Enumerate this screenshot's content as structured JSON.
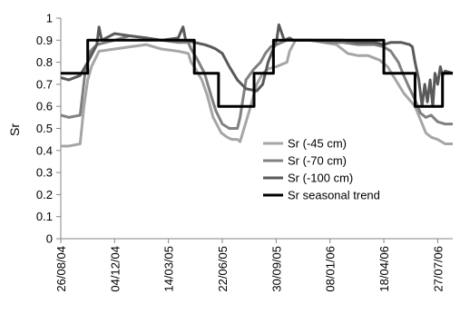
{
  "chart_data": {
    "type": "line",
    "title": "",
    "xlabel": "",
    "ylabel": "Sr",
    "ylim": [
      0,
      1
    ],
    "yticks": [
      "0",
      "0.1",
      "0.2",
      "0.3",
      "0.4",
      "0.5",
      "0.6",
      "0.7",
      "0.8",
      "0.9",
      "1"
    ],
    "xlim": [
      "2004-08-26",
      "2006-08-24"
    ],
    "xticks": [
      {
        "date": "2004-08-26",
        "label": "26/08/04"
      },
      {
        "date": "2004-12-04",
        "label": "04/12/04"
      },
      {
        "date": "2005-03-14",
        "label": "14/03/05"
      },
      {
        "date": "2005-06-22",
        "label": "22/06/05"
      },
      {
        "date": "2005-09-30",
        "label": "30/09/05"
      },
      {
        "date": "2006-01-08",
        "label": "08/01/06"
      },
      {
        "date": "2006-04-18",
        "label": "18/04/06"
      },
      {
        "date": "2006-07-27",
        "label": "27/07/06"
      }
    ],
    "grid": false,
    "legend_position": "center-right",
    "series": [
      {
        "name": "Sr (-45 cm)",
        "color": "#a6a6a6",
        "x": [
          "2004-08-26",
          "2004-09-10",
          "2004-10-01",
          "2004-10-08",
          "2004-10-15",
          "2004-10-22",
          "2004-11-05",
          "2004-12-04",
          "2005-01-01",
          "2005-02-01",
          "2005-03-01",
          "2005-04-01",
          "2005-04-20",
          "2005-04-25",
          "2005-05-01",
          "2005-05-15",
          "2005-05-25",
          "2005-06-05",
          "2005-06-20",
          "2005-07-01",
          "2005-07-10",
          "2005-07-20",
          "2005-07-25",
          "2005-08-10",
          "2005-08-25",
          "2005-09-05",
          "2005-09-15",
          "2005-09-30",
          "2005-10-20",
          "2005-10-25",
          "2005-11-05",
          "2005-12-01",
          "2006-01-20",
          "2006-02-10",
          "2006-03-01",
          "2006-03-20",
          "2006-04-10",
          "2006-04-25",
          "2006-05-10",
          "2006-05-25",
          "2006-06-15",
          "2006-06-25",
          "2006-07-05",
          "2006-07-15",
          "2006-07-27",
          "2006-08-10",
          "2006-08-24"
        ],
        "values": [
          0.42,
          0.42,
          0.43,
          0.6,
          0.72,
          0.78,
          0.85,
          0.86,
          0.87,
          0.88,
          0.86,
          0.85,
          0.84,
          0.8,
          0.78,
          0.72,
          0.65,
          0.55,
          0.48,
          0.46,
          0.45,
          0.45,
          0.44,
          0.57,
          0.7,
          0.75,
          0.77,
          0.78,
          0.8,
          0.85,
          0.9,
          0.9,
          0.88,
          0.84,
          0.83,
          0.83,
          0.81,
          0.78,
          0.72,
          0.66,
          0.6,
          0.54,
          0.48,
          0.46,
          0.45,
          0.43,
          0.43
        ]
      },
      {
        "name": "Sr (-70 cm)",
        "color": "#808080",
        "x": [
          "2004-08-26",
          "2004-09-10",
          "2004-10-01",
          "2004-10-10",
          "2004-10-20",
          "2004-11-01",
          "2004-12-04",
          "2005-01-01",
          "2005-02-01",
          "2005-03-01",
          "2005-04-01",
          "2005-04-20",
          "2005-04-25",
          "2005-05-05",
          "2005-05-20",
          "2005-06-01",
          "2005-06-10",
          "2005-06-22",
          "2005-07-05",
          "2005-07-20",
          "2005-07-25",
          "2005-08-05",
          "2005-08-20",
          "2005-09-01",
          "2005-09-10",
          "2005-09-20",
          "2005-10-01",
          "2005-10-20",
          "2005-11-01",
          "2005-12-01",
          "2006-01-08",
          "2006-02-01",
          "2006-03-01",
          "2006-04-01",
          "2006-04-18",
          "2006-05-01",
          "2006-05-15",
          "2006-05-25",
          "2006-06-05",
          "2006-06-15",
          "2006-06-25",
          "2006-07-05",
          "2006-07-15",
          "2006-07-27",
          "2006-08-10",
          "2006-08-24"
        ],
        "values": [
          0.56,
          0.55,
          0.56,
          0.75,
          0.85,
          0.88,
          0.9,
          0.92,
          0.91,
          0.9,
          0.89,
          0.89,
          0.86,
          0.82,
          0.75,
          0.65,
          0.58,
          0.52,
          0.5,
          0.5,
          0.55,
          0.72,
          0.77,
          0.8,
          0.84,
          0.87,
          0.88,
          0.9,
          0.9,
          0.9,
          0.89,
          0.89,
          0.88,
          0.88,
          0.87,
          0.85,
          0.8,
          0.74,
          0.68,
          0.63,
          0.57,
          0.55,
          0.56,
          0.53,
          0.52,
          0.52
        ]
      },
      {
        "name": "Sr (-100 cm)",
        "color": "#595959",
        "x": [
          "2004-08-26",
          "2004-09-10",
          "2004-10-01",
          "2004-10-15",
          "2004-11-01",
          "2004-11-05",
          "2004-11-10",
          "2004-12-04",
          "2005-01-01",
          "2005-02-01",
          "2005-03-01",
          "2005-04-01",
          "2005-04-10",
          "2005-04-15",
          "2005-05-01",
          "2005-05-20",
          "2005-06-01",
          "2005-06-10",
          "2005-06-22",
          "2005-07-05",
          "2005-07-20",
          "2005-08-05",
          "2005-08-25",
          "2005-09-05",
          "2005-09-15",
          "2005-10-01",
          "2005-10-05",
          "2005-10-15",
          "2005-10-25",
          "2005-11-01",
          "2005-12-01",
          "2006-01-08",
          "2006-02-01",
          "2006-03-01",
          "2006-04-01",
          "2006-04-18",
          "2006-05-01",
          "2006-05-20",
          "2006-06-05",
          "2006-06-10",
          "2006-06-15",
          "2006-06-22",
          "2006-06-28",
          "2006-07-03",
          "2006-07-08",
          "2006-07-13",
          "2006-07-18",
          "2006-07-22",
          "2006-07-27",
          "2006-08-01",
          "2006-08-05",
          "2006-08-10",
          "2006-08-24"
        ],
        "values": [
          0.73,
          0.72,
          0.74,
          0.8,
          0.88,
          0.96,
          0.9,
          0.93,
          0.92,
          0.91,
          0.9,
          0.91,
          0.96,
          0.9,
          0.89,
          0.88,
          0.87,
          0.86,
          0.84,
          0.78,
          0.72,
          0.68,
          0.67,
          0.7,
          0.8,
          0.9,
          0.97,
          0.9,
          0.91,
          0.9,
          0.9,
          0.9,
          0.9,
          0.89,
          0.89,
          0.88,
          0.89,
          0.89,
          0.88,
          0.87,
          0.8,
          0.72,
          0.6,
          0.7,
          0.62,
          0.72,
          0.6,
          0.75,
          0.7,
          0.78,
          0.74,
          0.76,
          0.75
        ]
      },
      {
        "name": "Sr seasonal trend",
        "color": "#000000",
        "step": true,
        "x": [
          "2004-08-26",
          "2004-10-15",
          "2005-05-01",
          "2005-06-15",
          "2005-08-20",
          "2005-09-25",
          "2006-04-18",
          "2006-06-15",
          "2006-08-05",
          "2006-08-24"
        ],
        "values": [
          0.75,
          0.9,
          0.75,
          0.6,
          0.75,
          0.9,
          0.75,
          0.6,
          0.75,
          0.75
        ]
      }
    ]
  }
}
